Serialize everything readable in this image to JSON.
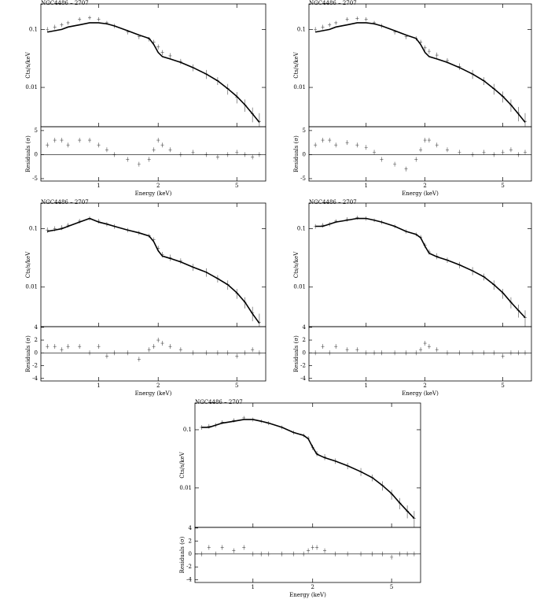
{
  "chart_data": [
    {
      "type": "spectrum",
      "title": "NGC4486 – 2707",
      "ylabel": "Cts/s/keV",
      "log_x": true,
      "log_y": true,
      "xlim": [
        0.51,
        7.0
      ],
      "ylim": [
        0.0021,
        0.275
      ],
      "yticks": [
        0.1,
        0.01
      ],
      "color": "#000000",
      "x": [
        0.55,
        0.6,
        0.65,
        0.7,
        0.8,
        0.9,
        1.0,
        1.1,
        1.2,
        1.4,
        1.6,
        1.8,
        1.9,
        2.0,
        2.1,
        2.3,
        2.6,
        3.0,
        3.5,
        4.0,
        4.5,
        5.0,
        5.5,
        6.0,
        6.5
      ],
      "values": [
        0.1,
        0.11,
        0.12,
        0.13,
        0.15,
        0.16,
        0.15,
        0.13,
        0.115,
        0.09,
        0.075,
        0.068,
        0.06,
        0.05,
        0.04,
        0.035,
        0.028,
        0.022,
        0.017,
        0.013,
        0.0095,
        0.0068,
        0.005,
        0.0035,
        0.0026
      ],
      "errors": [
        0.01,
        0.01,
        0.01,
        0.01,
        0.012,
        0.012,
        0.012,
        0.01,
        0.01,
        0.008,
        0.007,
        0.006,
        0.006,
        0.005,
        0.004,
        0.004,
        0.003,
        0.003,
        0.003,
        0.002,
        0.002,
        0.0015,
        0.0012,
        0.001,
        0.001
      ],
      "model": [
        0.09,
        0.095,
        0.1,
        0.11,
        0.12,
        0.13,
        0.13,
        0.125,
        0.115,
        0.095,
        0.08,
        0.07,
        0.055,
        0.04,
        0.034,
        0.031,
        0.027,
        0.022,
        0.017,
        0.013,
        0.0095,
        0.007,
        0.005,
        0.0035,
        0.0025
      ]
    },
    {
      "type": "residual",
      "xlabel": "Energy (keV)",
      "ylabel": "Residuals (σ)",
      "log_x": true,
      "xlim": [
        0.51,
        7.0
      ],
      "ylim": [
        -5.5,
        5.8
      ],
      "xticks": [
        1,
        2,
        5
      ],
      "yticks": [
        5,
        0,
        -5
      ],
      "hline": 0,
      "color": "#000000",
      "x": [
        0.55,
        0.6,
        0.65,
        0.7,
        0.8,
        0.9,
        1.0,
        1.1,
        1.2,
        1.4,
        1.6,
        1.8,
        1.9,
        2.0,
        2.1,
        2.3,
        2.6,
        3.0,
        3.5,
        4.0,
        4.5,
        5.0,
        5.5,
        6.0,
        6.5
      ],
      "values": [
        2,
        3,
        3,
        2,
        3,
        3,
        2,
        1,
        0,
        -1,
        -2,
        -1,
        1,
        3,
        2,
        1,
        0,
        0.5,
        0,
        -0.5,
        0,
        0.5,
        0,
        -0.5,
        0
      ]
    },
    {
      "type": "spectrum",
      "title": "NGC4486 – 2707",
      "ylabel": "Cts/s/keV",
      "log_x": true,
      "log_y": true,
      "xlim": [
        0.51,
        7.0
      ],
      "ylim": [
        0.0021,
        0.275
      ],
      "yticks": [
        0.1,
        0.01
      ],
      "color": "#000000",
      "x": [
        0.55,
        0.6,
        0.65,
        0.7,
        0.8,
        0.9,
        1.0,
        1.1,
        1.2,
        1.4,
        1.6,
        1.8,
        1.9,
        2.0,
        2.1,
        2.3,
        2.6,
        3.0,
        3.5,
        4.0,
        4.5,
        5.0,
        5.5,
        6.0,
        6.5
      ],
      "values": [
        0.1,
        0.11,
        0.12,
        0.13,
        0.15,
        0.155,
        0.15,
        0.13,
        0.115,
        0.09,
        0.075,
        0.07,
        0.06,
        0.048,
        0.042,
        0.036,
        0.029,
        0.023,
        0.017,
        0.013,
        0.0095,
        0.007,
        0.005,
        0.0036,
        0.0026
      ],
      "errors": [
        0.01,
        0.01,
        0.01,
        0.01,
        0.012,
        0.012,
        0.012,
        0.01,
        0.01,
        0.008,
        0.007,
        0.006,
        0.006,
        0.005,
        0.004,
        0.004,
        0.003,
        0.003,
        0.003,
        0.002,
        0.002,
        0.0015,
        0.0012,
        0.001,
        0.001
      ],
      "model": [
        0.09,
        0.095,
        0.1,
        0.11,
        0.12,
        0.13,
        0.13,
        0.125,
        0.115,
        0.095,
        0.08,
        0.07,
        0.055,
        0.04,
        0.034,
        0.031,
        0.027,
        0.022,
        0.017,
        0.013,
        0.0095,
        0.007,
        0.005,
        0.0035,
        0.0025
      ]
    },
    {
      "type": "residual",
      "xlabel": "Energy (keV)",
      "ylabel": "Residuals (σ)",
      "log_x": true,
      "xlim": [
        0.51,
        7.0
      ],
      "ylim": [
        -5.5,
        5.8
      ],
      "xticks": [
        1,
        2,
        5
      ],
      "yticks": [
        5,
        0,
        -5
      ],
      "hline": 0,
      "color": "#000000",
      "x": [
        0.55,
        0.6,
        0.65,
        0.7,
        0.8,
        0.9,
        1.0,
        1.1,
        1.2,
        1.4,
        1.6,
        1.8,
        1.9,
        2.0,
        2.1,
        2.3,
        2.6,
        3.0,
        3.5,
        4.0,
        4.5,
        5.0,
        5.5,
        6.0,
        6.5
      ],
      "values": [
        2,
        3,
        3,
        2,
        2.5,
        2,
        1.5,
        0.5,
        -1,
        -2,
        -3,
        -1,
        1,
        3,
        3,
        2,
        1,
        0.5,
        0,
        0.5,
        0,
        0.5,
        1,
        0,
        0.5
      ]
    },
    {
      "type": "spectrum",
      "title": "NGC4486 – 2707",
      "ylabel": "Cts/s/keV",
      "log_x": true,
      "log_y": true,
      "xlim": [
        0.51,
        7.0
      ],
      "ylim": [
        0.0021,
        0.275
      ],
      "yticks": [
        0.1,
        0.01
      ],
      "color": "#000000",
      "x": [
        0.55,
        0.6,
        0.65,
        0.7,
        0.8,
        0.9,
        1.0,
        1.1,
        1.2,
        1.4,
        1.6,
        1.8,
        1.9,
        2.0,
        2.1,
        2.3,
        2.6,
        3.0,
        3.5,
        4.0,
        4.5,
        5.0,
        5.5,
        6.0,
        6.5
      ],
      "values": [
        0.095,
        0.1,
        0.105,
        0.115,
        0.135,
        0.15,
        0.135,
        0.12,
        0.11,
        0.095,
        0.085,
        0.076,
        0.065,
        0.046,
        0.036,
        0.032,
        0.028,
        0.022,
        0.018,
        0.014,
        0.011,
        0.0078,
        0.0055,
        0.0036,
        0.0025
      ],
      "errors": [
        0.01,
        0.01,
        0.01,
        0.01,
        0.012,
        0.012,
        0.012,
        0.01,
        0.01,
        0.008,
        0.007,
        0.006,
        0.006,
        0.005,
        0.004,
        0.004,
        0.003,
        0.003,
        0.003,
        0.002,
        0.002,
        0.0015,
        0.0012,
        0.001,
        0.001
      ],
      "model": [
        0.09,
        0.095,
        0.1,
        0.11,
        0.13,
        0.15,
        0.13,
        0.12,
        0.11,
        0.095,
        0.085,
        0.075,
        0.06,
        0.042,
        0.034,
        0.031,
        0.027,
        0.022,
        0.018,
        0.014,
        0.011,
        0.008,
        0.0055,
        0.0035,
        0.0024
      ]
    },
    {
      "type": "residual",
      "xlabel": "Energy (keV)",
      "ylabel": "Residuals (σ)",
      "log_x": true,
      "xlim": [
        0.51,
        7.0
      ],
      "ylim": [
        -4.4,
        4.1
      ],
      "xticks": [
        1,
        2,
        5
      ],
      "yticks": [
        4,
        2,
        0,
        -2,
        -4
      ],
      "hline": 0,
      "color": "#000000",
      "x": [
        0.55,
        0.6,
        0.65,
        0.7,
        0.8,
        0.9,
        1.0,
        1.1,
        1.2,
        1.4,
        1.6,
        1.8,
        1.9,
        2.0,
        2.1,
        2.3,
        2.6,
        3.0,
        3.5,
        4.0,
        4.5,
        5.0,
        5.5,
        6.0,
        6.5
      ],
      "values": [
        1,
        1,
        0.5,
        1,
        1,
        0,
        1,
        -0.5,
        0,
        0,
        -1,
        0.5,
        1,
        2,
        1.5,
        1,
        0.5,
        0,
        0,
        0,
        0,
        -0.5,
        0,
        0.5,
        0
      ]
    },
    {
      "type": "spectrum",
      "title": "NGC4486 – 2707",
      "ylabel": "Cts/s/keV",
      "log_x": true,
      "log_y": true,
      "xlim": [
        0.51,
        7.0
      ],
      "ylim": [
        0.0021,
        0.275
      ],
      "yticks": [
        0.1,
        0.01
      ],
      "color": "#000000",
      "x": [
        0.55,
        0.6,
        0.65,
        0.7,
        0.8,
        0.9,
        1.0,
        1.1,
        1.2,
        1.4,
        1.6,
        1.8,
        1.9,
        2.0,
        2.1,
        2.3,
        2.6,
        3.0,
        3.5,
        4.0,
        4.5,
        5.0,
        5.5,
        6.0,
        6.5
      ],
      "values": [
        0.11,
        0.115,
        0.12,
        0.135,
        0.145,
        0.155,
        0.15,
        0.14,
        0.13,
        0.11,
        0.09,
        0.08,
        0.072,
        0.052,
        0.04,
        0.034,
        0.029,
        0.024,
        0.019,
        0.015,
        0.011,
        0.0078,
        0.0055,
        0.004,
        0.003
      ],
      "errors": [
        0.01,
        0.01,
        0.01,
        0.01,
        0.012,
        0.012,
        0.012,
        0.01,
        0.01,
        0.008,
        0.007,
        0.006,
        0.006,
        0.005,
        0.004,
        0.004,
        0.003,
        0.003,
        0.003,
        0.002,
        0.002,
        0.0015,
        0.0012,
        0.001,
        0.001
      ],
      "model": [
        0.11,
        0.11,
        0.12,
        0.13,
        0.14,
        0.15,
        0.15,
        0.14,
        0.13,
        0.11,
        0.09,
        0.08,
        0.07,
        0.05,
        0.038,
        0.033,
        0.029,
        0.024,
        0.019,
        0.015,
        0.011,
        0.008,
        0.0055,
        0.004,
        0.003
      ]
    },
    {
      "type": "residual",
      "xlabel": "Energy (keV)",
      "ylabel": "Residuals (σ)",
      "log_x": true,
      "xlim": [
        0.51,
        7.0
      ],
      "ylim": [
        -4.4,
        4.1
      ],
      "xticks": [
        1,
        2,
        5
      ],
      "yticks": [
        4,
        2,
        0,
        -2,
        -4
      ],
      "hline": 0,
      "color": "#000000",
      "x": [
        0.55,
        0.6,
        0.65,
        0.7,
        0.8,
        0.9,
        1.0,
        1.1,
        1.2,
        1.4,
        1.6,
        1.8,
        1.9,
        2.0,
        2.1,
        2.3,
        2.6,
        3.0,
        3.5,
        4.0,
        4.5,
        5.0,
        5.5,
        6.0,
        6.5
      ],
      "values": [
        0,
        1,
        0,
        1,
        0.5,
        0.5,
        0,
        0,
        0,
        0,
        0,
        0,
        0.5,
        1.5,
        1,
        0.5,
        0,
        0,
        0,
        0,
        0,
        -0.5,
        0,
        0,
        0
      ]
    },
    {
      "type": "spectrum",
      "title": "NGC4486 – 2707",
      "ylabel": "Cts/s/keV",
      "log_x": true,
      "log_y": true,
      "xlim": [
        0.51,
        7.0
      ],
      "ylim": [
        0.0021,
        0.288
      ],
      "yticks": [
        0.1,
        0.01
      ],
      "color": "#000000",
      "x": [
        0.55,
        0.6,
        0.65,
        0.7,
        0.8,
        0.9,
        1.0,
        1.1,
        1.2,
        1.4,
        1.6,
        1.8,
        1.9,
        2.0,
        2.1,
        2.3,
        2.6,
        3.0,
        3.5,
        4.0,
        4.5,
        5.0,
        5.5,
        6.0,
        6.5
      ],
      "values": [
        0.11,
        0.115,
        0.12,
        0.135,
        0.145,
        0.16,
        0.15,
        0.14,
        0.13,
        0.11,
        0.09,
        0.08,
        0.072,
        0.05,
        0.039,
        0.034,
        0.029,
        0.024,
        0.019,
        0.015,
        0.011,
        0.0078,
        0.0055,
        0.004,
        0.003
      ],
      "errors": [
        0.01,
        0.01,
        0.01,
        0.01,
        0.012,
        0.012,
        0.012,
        0.01,
        0.01,
        0.008,
        0.007,
        0.006,
        0.006,
        0.005,
        0.004,
        0.004,
        0.003,
        0.003,
        0.003,
        0.002,
        0.002,
        0.0015,
        0.0012,
        0.001,
        0.001
      ],
      "model": [
        0.11,
        0.11,
        0.12,
        0.13,
        0.14,
        0.15,
        0.15,
        0.14,
        0.13,
        0.11,
        0.09,
        0.08,
        0.07,
        0.05,
        0.038,
        0.033,
        0.029,
        0.024,
        0.019,
        0.015,
        0.011,
        0.008,
        0.0055,
        0.004,
        0.003
      ]
    },
    {
      "type": "residual",
      "xlabel": "Energy (keV)",
      "ylabel": "Residuals (σ)",
      "log_x": true,
      "xlim": [
        0.51,
        7.0
      ],
      "ylim": [
        -4.4,
        4.1
      ],
      "xticks": [
        1,
        2,
        5
      ],
      "yticks": [
        4,
        2,
        0,
        -2,
        -4
      ],
      "hline": 0,
      "color": "#000000",
      "x": [
        0.55,
        0.6,
        0.65,
        0.7,
        0.8,
        0.9,
        1.0,
        1.1,
        1.2,
        1.4,
        1.6,
        1.8,
        1.9,
        2.0,
        2.1,
        2.3,
        2.6,
        3.0,
        3.5,
        4.0,
        4.5,
        5.0,
        5.5,
        6.0,
        6.5
      ],
      "values": [
        0,
        1,
        0,
        1,
        0.5,
        1,
        0,
        0,
        0,
        0,
        0,
        0,
        0.5,
        1,
        1,
        0.5,
        0,
        0,
        0,
        0,
        0,
        -0.5,
        0,
        0,
        0
      ]
    }
  ]
}
